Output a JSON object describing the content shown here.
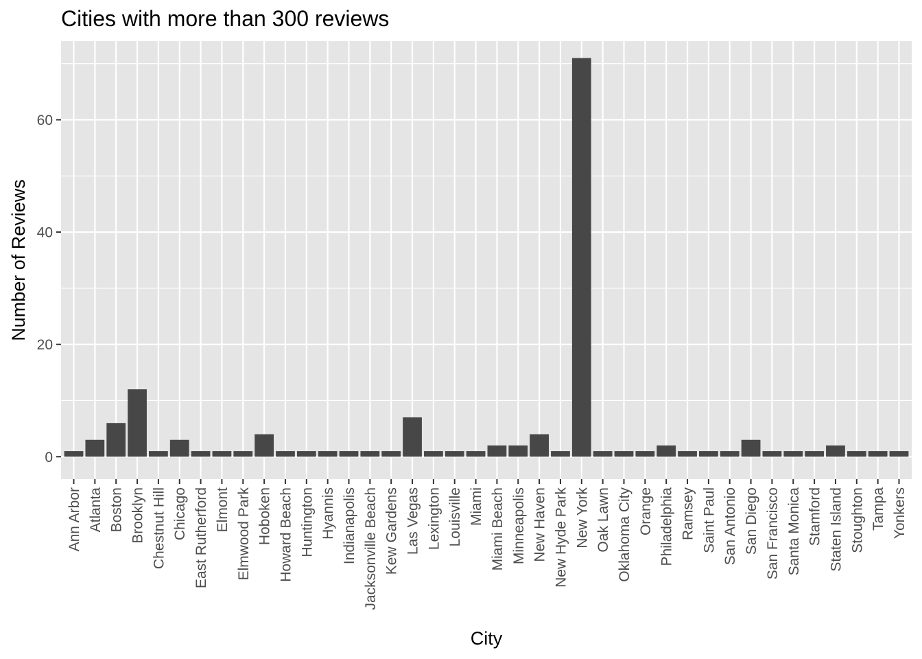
{
  "chart_data": {
    "type": "bar",
    "title": "Cities with more than 300 reviews",
    "xlabel": "City",
    "ylabel": "Number of Reviews",
    "ylim": [
      -4,
      74
    ],
    "yticks": [
      0,
      20,
      40,
      60
    ],
    "grid": true,
    "categories": [
      "Ann Arbor",
      "Atlanta",
      "Boston",
      "Brooklyn",
      "Chestnut Hill",
      "Chicago",
      "East Rutherford",
      "Elmont",
      "Elmwood Park",
      "Hoboken",
      "Howard Beach",
      "Huntington",
      "Hyannis",
      "Indianapolis",
      "Jacksonville Beach",
      "Kew Gardens",
      "Las Vegas",
      "Lexington",
      "Louisville",
      "Miami",
      "Miami Beach",
      "Minneapolis",
      "New Haven",
      "New Hyde Park",
      "New York",
      "Oak Lawn",
      "Oklahoma City",
      "Orange",
      "Philadelphia",
      "Ramsey",
      "Saint Paul",
      "San Antonio",
      "San Diego",
      "San Francisco",
      "Santa Monica",
      "Stamford",
      "Staten Island",
      "Stoughton",
      "Tampa",
      "Yonkers"
    ],
    "values": [
      1,
      3,
      6,
      12,
      1,
      3,
      1,
      1,
      1,
      4,
      1,
      1,
      1,
      1,
      1,
      1,
      7,
      1,
      1,
      1,
      2,
      2,
      4,
      1,
      71,
      1,
      1,
      1,
      2,
      1,
      1,
      1,
      3,
      1,
      1,
      1,
      2,
      1,
      1,
      1
    ],
    "colors": {
      "panel": "#e5e5e5",
      "grid_major": "#ffffff",
      "bar": "#474747",
      "tick": "#333333"
    }
  }
}
